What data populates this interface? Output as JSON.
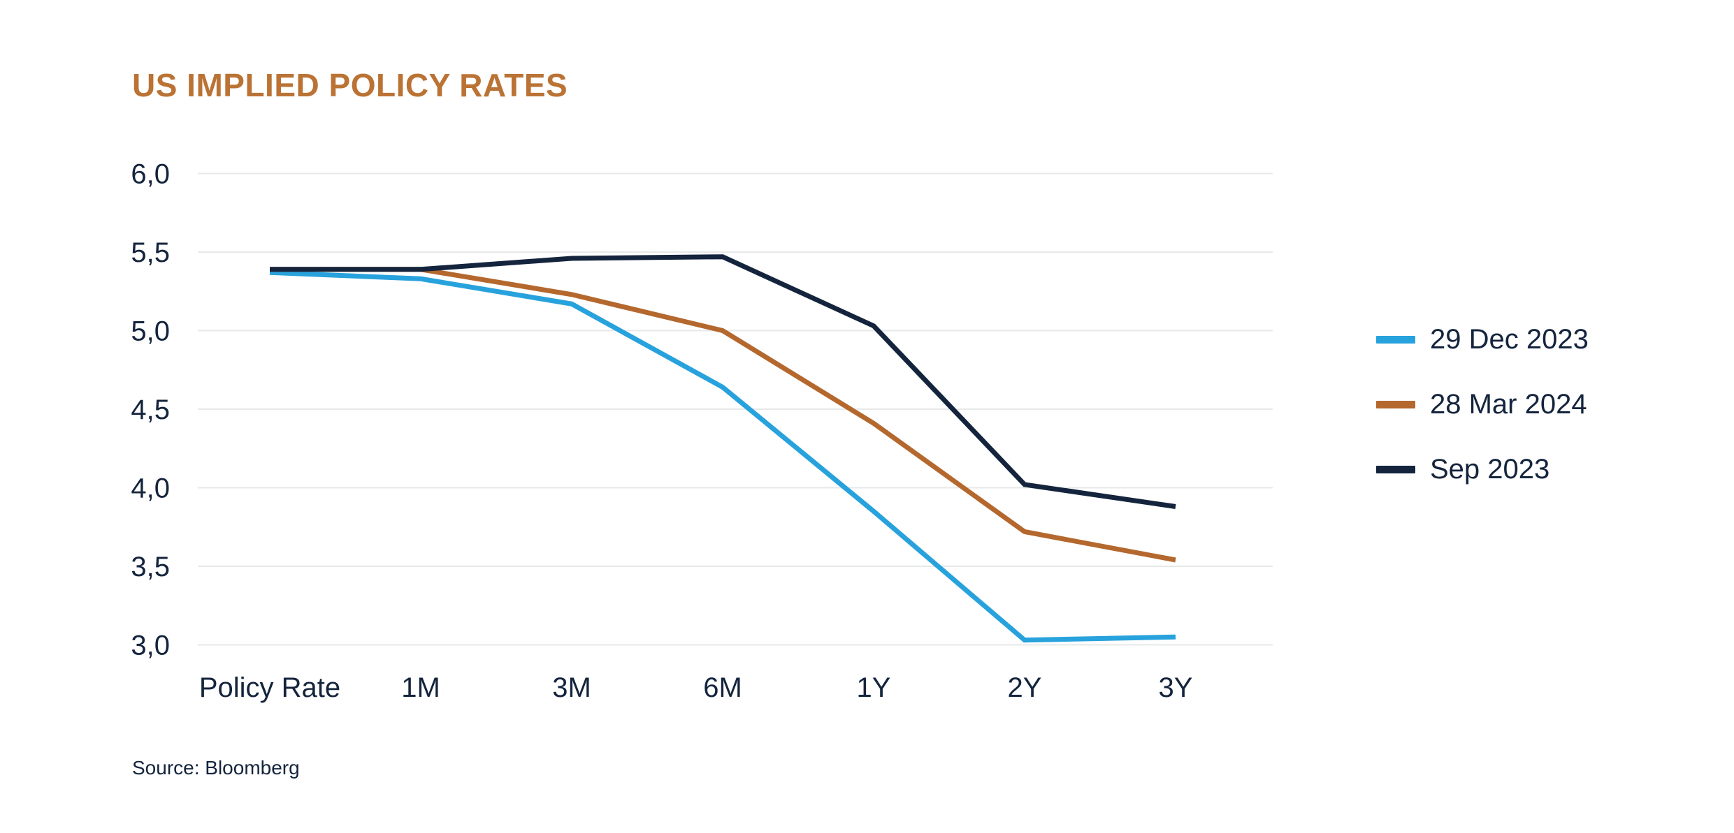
{
  "title": "US IMPLIED POLICY RATES",
  "source": "Source: Bloomberg",
  "colors": {
    "background": "#FFFFFF",
    "title_text": "#BA7334",
    "axis_text": "#14243D",
    "gridline": "#E7E8EA"
  },
  "chart_data": {
    "type": "line",
    "title": "US IMPLIED POLICY RATES",
    "xlabel": "",
    "ylabel": "",
    "categories": [
      "Policy Rate",
      "1M",
      "3M",
      "6M",
      "1Y",
      "2Y",
      "3Y"
    ],
    "series": [
      {
        "name": "29 Dec 2023",
        "color": "#28A2DC",
        "values": [
          5.37,
          5.33,
          5.17,
          4.64,
          3.85,
          3.03,
          3.05
        ]
      },
      {
        "name": "28 Mar 2024",
        "color": "#B4682E",
        "values": [
          5.39,
          5.39,
          5.23,
          5.0,
          4.41,
          3.72,
          3.54
        ]
      },
      {
        "name": "Sep 2023",
        "color": "#14243D",
        "values": [
          5.39,
          5.39,
          5.46,
          5.47,
          5.03,
          4.02,
          3.88
        ]
      }
    ],
    "ylim": [
      3.0,
      6.0
    ],
    "y_ticks": [
      {
        "value": 6.0,
        "label": "6,0"
      },
      {
        "value": 5.5,
        "label": "5,5"
      },
      {
        "value": 5.0,
        "label": "5,0"
      },
      {
        "value": 4.5,
        "label": "4,5"
      },
      {
        "value": 4.0,
        "label": "4,0"
      },
      {
        "value": 3.5,
        "label": "3,5"
      },
      {
        "value": 3.0,
        "label": "3,0"
      }
    ],
    "decimal_separator": ",",
    "grid": "horizontal",
    "legend_position": "right"
  }
}
